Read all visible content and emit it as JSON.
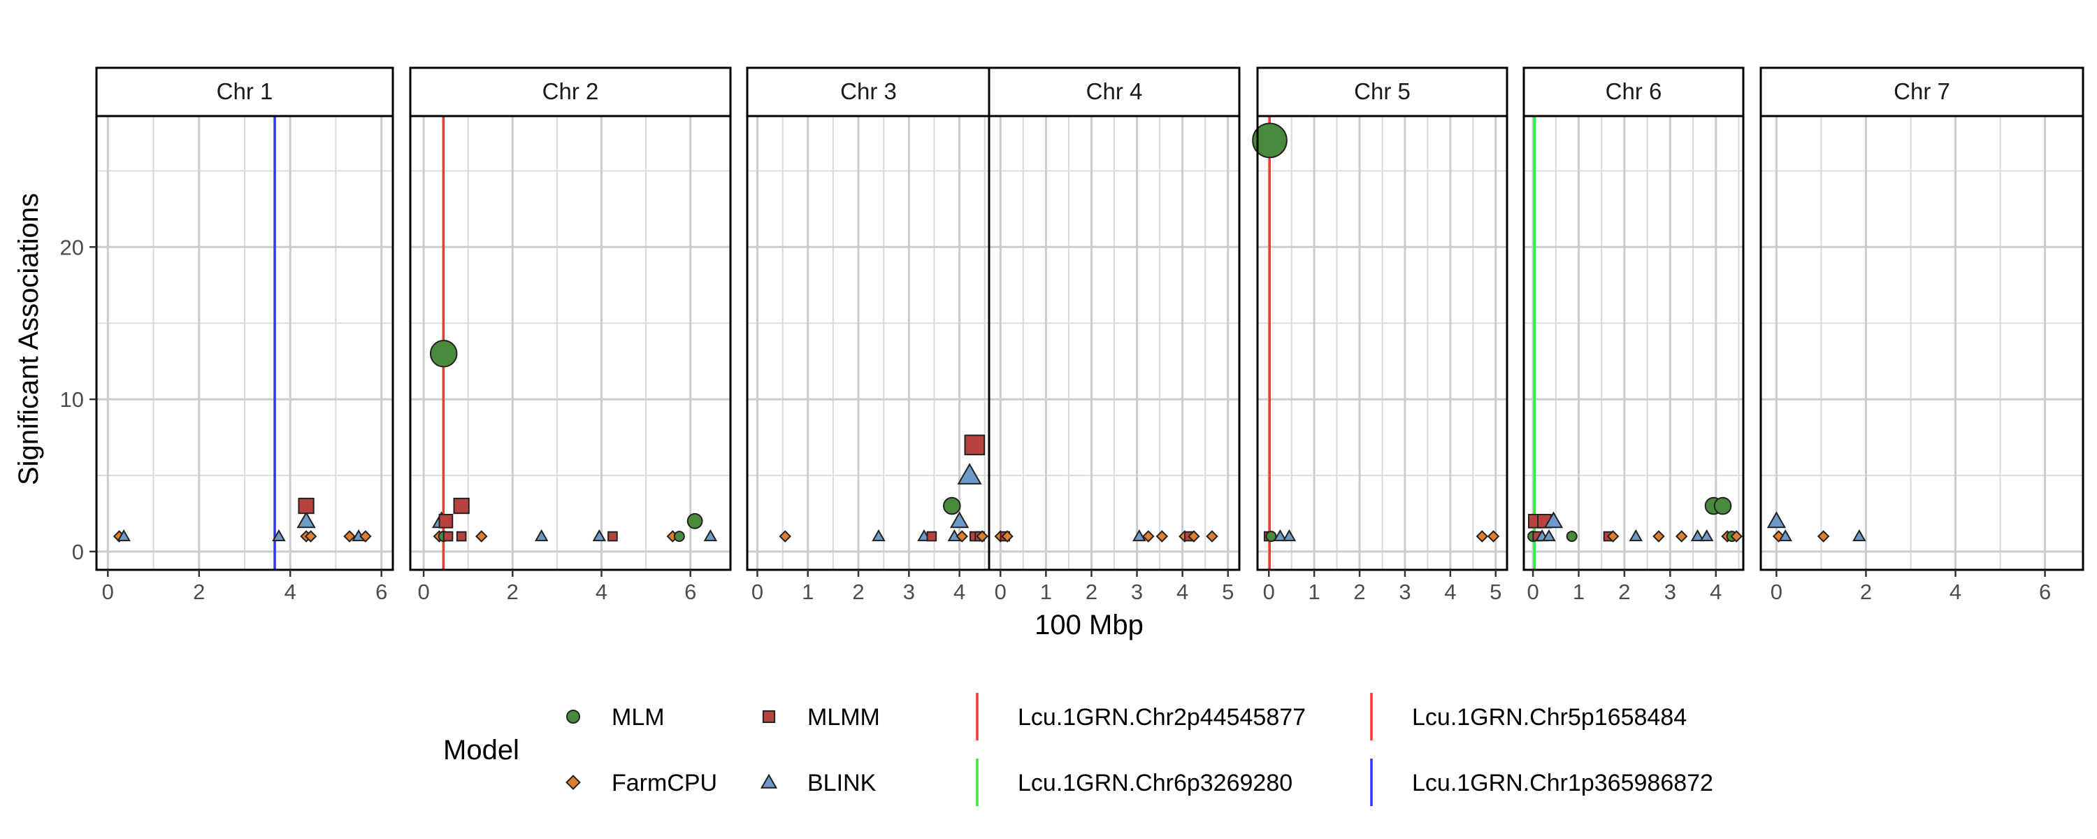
{
  "chart_data": {
    "type": "scatter",
    "ylabel": "Significant Associations",
    "xlabel": "100 Mbp",
    "ylim": [
      -1.2,
      28.6
    ],
    "y_ticks": [
      "0",
      "10",
      "20"
    ],
    "y_tick_values": [
      0,
      10,
      20
    ],
    "grid": true,
    "legend": {
      "position": "bottom",
      "title": "Model",
      "models": [
        {
          "key": "MLM",
          "label": "MLM",
          "shape": "circle",
          "color": "#4a8a3c"
        },
        {
          "key": "MLMM",
          "label": "MLMM",
          "shape": "square",
          "color": "#b8423e"
        },
        {
          "key": "FarmCPU",
          "label": "FarmCPU",
          "shape": "diamond",
          "color": "#e07e2e"
        },
        {
          "key": "BLINK",
          "label": "BLINK",
          "shape": "triangle",
          "color": "#6e9ac8"
        }
      ],
      "lines": [
        {
          "label": "Lcu.1GRN.Chr2p44545877",
          "color": "#ff3333"
        },
        {
          "label": "Lcu.1GRN.Chr5p1658484",
          "color": "#ff3333"
        },
        {
          "label": "Lcu.1GRN.Chr6p3269280",
          "color": "#33ee33"
        },
        {
          "label": "Lcu.1GRN.Chr1p365986872",
          "color": "#3333ff"
        }
      ]
    },
    "panels": [
      {
        "label": "Chr 1",
        "xlim": [
          -0.25,
          6.25
        ],
        "x_ticks": [
          "0",
          "2",
          "4",
          "6"
        ],
        "x_tick_values": [
          0,
          2,
          4,
          6
        ],
        "vlines": [
          {
            "x": 3.66,
            "color": "#3333ff"
          }
        ],
        "points": [
          {
            "x": 0.25,
            "y": 1,
            "model": "FarmCPU"
          },
          {
            "x": 0.35,
            "y": 1,
            "model": "BLINK"
          },
          {
            "x": 3.75,
            "y": 1,
            "model": "BLINK"
          },
          {
            "x": 4.35,
            "y": 3,
            "model": "MLMM"
          },
          {
            "x": 4.35,
            "y": 2,
            "model": "BLINK"
          },
          {
            "x": 4.35,
            "y": 1,
            "model": "FarmCPU"
          },
          {
            "x": 4.45,
            "y": 1,
            "model": "FarmCPU"
          },
          {
            "x": 5.3,
            "y": 1,
            "model": "FarmCPU"
          },
          {
            "x": 5.5,
            "y": 1,
            "model": "BLINK"
          },
          {
            "x": 5.65,
            "y": 1,
            "model": "FarmCPU"
          }
        ]
      },
      {
        "label": "Chr 2",
        "xlim": [
          -0.3,
          6.9
        ],
        "x_ticks": [
          "0",
          "2",
          "4",
          "6"
        ],
        "x_tick_values": [
          0,
          2,
          4,
          6
        ],
        "vlines": [
          {
            "x": 0.445,
            "color": "#ff3333"
          }
        ],
        "points": [
          {
            "x": 0.45,
            "y": 13,
            "model": "MLM"
          },
          {
            "x": 0.4,
            "y": 2,
            "model": "BLINK"
          },
          {
            "x": 0.5,
            "y": 2,
            "model": "MLMM"
          },
          {
            "x": 0.35,
            "y": 1,
            "model": "FarmCPU"
          },
          {
            "x": 0.45,
            "y": 1,
            "model": "MLM"
          },
          {
            "x": 0.55,
            "y": 1,
            "model": "MLMM"
          },
          {
            "x": 0.85,
            "y": 3,
            "model": "MLMM"
          },
          {
            "x": 0.85,
            "y": 1,
            "model": "MLMM"
          },
          {
            "x": 1.3,
            "y": 1,
            "model": "FarmCPU"
          },
          {
            "x": 2.65,
            "y": 1,
            "model": "BLINK"
          },
          {
            "x": 3.95,
            "y": 1,
            "model": "BLINK"
          },
          {
            "x": 4.25,
            "y": 1,
            "model": "MLMM"
          },
          {
            "x": 5.6,
            "y": 1,
            "model": "FarmCPU"
          },
          {
            "x": 5.75,
            "y": 1,
            "model": "MLM"
          },
          {
            "x": 6.1,
            "y": 2,
            "model": "MLM"
          },
          {
            "x": 6.45,
            "y": 1,
            "model": "BLINK"
          }
        ]
      },
      {
        "label": "Chr 3",
        "xlim": [
          -0.2,
          4.6
        ],
        "x_ticks": [
          "0",
          "1",
          "2",
          "3",
          "4"
        ],
        "x_tick_values": [
          0,
          1,
          2,
          3,
          4
        ],
        "vlines": [],
        "points": [
          {
            "x": 0.55,
            "y": 1,
            "model": "FarmCPU"
          },
          {
            "x": 2.4,
            "y": 1,
            "model": "BLINK"
          },
          {
            "x": 3.3,
            "y": 1,
            "model": "BLINK"
          },
          {
            "x": 3.45,
            "y": 1,
            "model": "MLMM"
          },
          {
            "x": 3.85,
            "y": 3,
            "model": "MLM"
          },
          {
            "x": 3.9,
            "y": 1,
            "model": "BLINK"
          },
          {
            "x": 4.0,
            "y": 2,
            "model": "BLINK"
          },
          {
            "x": 4.05,
            "y": 1,
            "model": "FarmCPU"
          },
          {
            "x": 4.2,
            "y": 5,
            "model": "BLINK"
          },
          {
            "x": 4.3,
            "y": 7,
            "model": "MLMM"
          },
          {
            "x": 4.3,
            "y": 1,
            "model": "MLMM"
          },
          {
            "x": 4.4,
            "y": 1,
            "model": "MLMM"
          },
          {
            "x": 4.45,
            "y": 1,
            "model": "FarmCPU"
          }
        ]
      },
      {
        "label": "Chr 4",
        "xlim": [
          -0.25,
          5.25
        ],
        "x_ticks": [
          "0",
          "1",
          "2",
          "3",
          "4",
          "5"
        ],
        "x_tick_values": [
          0,
          1,
          2,
          3,
          4,
          5
        ],
        "vlines": [],
        "points": [
          {
            "x": 0.0,
            "y": 1,
            "model": "FarmCPU"
          },
          {
            "x": 0.1,
            "y": 1,
            "model": "MLMM"
          },
          {
            "x": 0.15,
            "y": 1,
            "model": "FarmCPU"
          },
          {
            "x": 3.05,
            "y": 1,
            "model": "BLINK"
          },
          {
            "x": 3.25,
            "y": 1,
            "model": "FarmCPU"
          },
          {
            "x": 3.55,
            "y": 1,
            "model": "FarmCPU"
          },
          {
            "x": 4.05,
            "y": 1,
            "model": "FarmCPU"
          },
          {
            "x": 4.15,
            "y": 1,
            "model": "MLMM"
          },
          {
            "x": 4.25,
            "y": 1,
            "model": "FarmCPU"
          },
          {
            "x": 4.65,
            "y": 1,
            "model": "FarmCPU"
          }
        ]
      },
      {
        "label": "Chr 5",
        "xlim": [
          -0.25,
          5.25
        ],
        "x_ticks": [
          "0",
          "1",
          "2",
          "3",
          "4",
          "5"
        ],
        "x_tick_values": [
          0,
          1,
          2,
          3,
          4,
          5
        ],
        "vlines": [
          {
            "x": 0.016,
            "color": "#ff3333"
          }
        ],
        "points": [
          {
            "x": 0.02,
            "y": 27,
            "model": "MLM"
          },
          {
            "x": 0.0,
            "y": 1,
            "model": "MLMM"
          },
          {
            "x": 0.05,
            "y": 1,
            "model": "MLM"
          },
          {
            "x": 0.25,
            "y": 1,
            "model": "BLINK"
          },
          {
            "x": 0.45,
            "y": 1,
            "model": "BLINK"
          },
          {
            "x": 4.7,
            "y": 1,
            "model": "FarmCPU"
          },
          {
            "x": 4.95,
            "y": 1,
            "model": "FarmCPU"
          }
        ]
      },
      {
        "label": "Chr 6",
        "xlim": [
          -0.2,
          4.6
        ],
        "x_ticks": [
          "0",
          "1",
          "2",
          "3",
          "4"
        ],
        "x_tick_values": [
          0,
          1,
          2,
          3,
          4
        ],
        "vlines": [
          {
            "x": 0.033,
            "color": "#33ee33"
          }
        ],
        "points": [
          {
            "x": 0.05,
            "y": 2,
            "model": "MLMM"
          },
          {
            "x": 0.25,
            "y": 2,
            "model": "MLMM"
          },
          {
            "x": 0.0,
            "y": 1,
            "model": "MLM"
          },
          {
            "x": 0.1,
            "y": 1,
            "model": "MLMM"
          },
          {
            "x": 0.2,
            "y": 1,
            "model": "BLINK"
          },
          {
            "x": 0.35,
            "y": 1,
            "model": "BLINK"
          },
          {
            "x": 0.45,
            "y": 2,
            "model": "BLINK"
          },
          {
            "x": 0.85,
            "y": 1,
            "model": "MLM"
          },
          {
            "x": 1.65,
            "y": 1,
            "model": "MLMM"
          },
          {
            "x": 1.75,
            "y": 1,
            "model": "FarmCPU"
          },
          {
            "x": 2.25,
            "y": 1,
            "model": "BLINK"
          },
          {
            "x": 2.75,
            "y": 1,
            "model": "FarmCPU"
          },
          {
            "x": 3.25,
            "y": 1,
            "model": "FarmCPU"
          },
          {
            "x": 3.6,
            "y": 1,
            "model": "BLINK"
          },
          {
            "x": 3.8,
            "y": 1,
            "model": "BLINK"
          },
          {
            "x": 3.95,
            "y": 3,
            "model": "MLM"
          },
          {
            "x": 4.15,
            "y": 3,
            "model": "MLM"
          },
          {
            "x": 4.25,
            "y": 1,
            "model": "FarmCPU"
          },
          {
            "x": 4.35,
            "y": 1,
            "model": "MLM"
          },
          {
            "x": 4.45,
            "y": 1,
            "model": "FarmCPU"
          }
        ]
      },
      {
        "label": "Chr 7",
        "xlim": [
          -0.35,
          6.85
        ],
        "x_ticks": [
          "0",
          "2",
          "4",
          "6"
        ],
        "x_tick_values": [
          0,
          2,
          4,
          6
        ],
        "vlines": [],
        "points": [
          {
            "x": 0.0,
            "y": 2,
            "model": "BLINK"
          },
          {
            "x": 0.05,
            "y": 1,
            "model": "FarmCPU"
          },
          {
            "x": 0.2,
            "y": 1,
            "model": "BLINK"
          },
          {
            "x": 1.05,
            "y": 1,
            "model": "FarmCPU"
          },
          {
            "x": 1.85,
            "y": 1,
            "model": "BLINK"
          }
        ]
      }
    ]
  }
}
